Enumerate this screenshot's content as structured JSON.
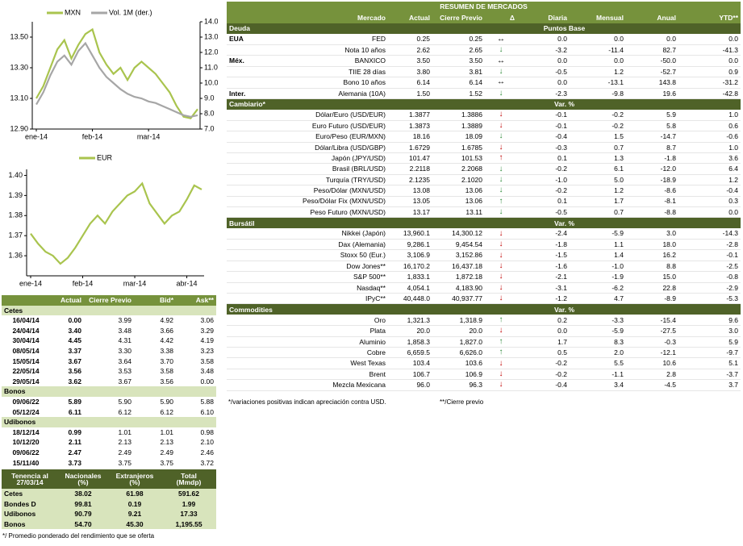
{
  "chart_data": [
    {
      "type": "line",
      "categories": [
        "ene-14",
        null,
        null,
        null,
        null,
        null,
        null,
        null,
        "feb-14",
        null,
        null,
        null,
        null,
        null,
        null,
        null,
        "mar-14",
        null,
        null,
        null,
        null,
        null,
        null,
        null
      ],
      "series": [
        {
          "name": "MXN",
          "color": "#a9c44e",
          "values": [
            13.1,
            13.18,
            13.3,
            13.42,
            13.48,
            13.36,
            13.45,
            13.52,
            13.55,
            13.4,
            13.32,
            13.26,
            13.3,
            13.22,
            13.3,
            13.34,
            13.3,
            13.26,
            13.2,
            13.14,
            13.05,
            12.98,
            12.97,
            13.03
          ]
        },
        {
          "name": "Vol. 1M (der.)",
          "color": "#a6a6a6",
          "axis": "y2",
          "values": [
            8.6,
            9.4,
            10.5,
            11.4,
            11.8,
            11.2,
            12.1,
            12.6,
            11.8,
            11.0,
            10.4,
            10.0,
            9.6,
            9.3,
            9.1,
            9.0,
            8.8,
            8.7,
            8.5,
            8.3,
            8.1,
            7.9,
            7.8,
            7.9
          ]
        }
      ],
      "ylim": [
        12.9,
        13.6
      ],
      "yticks": [
        {
          "value": 12.9,
          "label": "12.90"
        },
        {
          "value": 13.1,
          "label": "13.10"
        },
        {
          "value": 13.3,
          "label": "13.30"
        },
        {
          "value": 13.5,
          "label": "13.50"
        }
      ],
      "y2lim": [
        7,
        14
      ],
      "y2ticks": [
        {
          "value": 7,
          "label": "7.0"
        },
        {
          "value": 8,
          "label": "8.0"
        },
        {
          "value": 9,
          "label": "9.0"
        },
        {
          "value": 10,
          "label": "10.0"
        },
        {
          "value": 11,
          "label": "11.0"
        },
        {
          "value": 12,
          "label": "12.0"
        },
        {
          "value": 13,
          "label": "13.0"
        },
        {
          "value": 14,
          "label": "14.0"
        }
      ]
    },
    {
      "type": "line",
      "categories": [
        "ene-14",
        null,
        null,
        null,
        null,
        null,
        null,
        "feb-14",
        null,
        null,
        null,
        null,
        null,
        null,
        "mar-14",
        null,
        null,
        null,
        null,
        null,
        null,
        "abr-14",
        null,
        null
      ],
      "series": [
        {
          "name": "EUR",
          "color": "#a9c44e",
          "values": [
            1.371,
            1.366,
            1.362,
            1.36,
            1.356,
            1.359,
            1.364,
            1.37,
            1.376,
            1.38,
            1.376,
            1.382,
            1.386,
            1.39,
            1.392,
            1.396,
            1.386,
            1.381,
            1.376,
            1.38,
            1.382,
            1.388,
            1.395,
            1.393
          ]
        }
      ],
      "ylim": [
        1.35,
        1.403
      ],
      "yticks": [
        1.36,
        1.37,
        1.38,
        1.39,
        {
          "value": 1.4,
          "label": "1.40"
        }
      ]
    }
  ],
  "bond_table": {
    "header": [
      "Actual",
      "Cierre Previo",
      "Bid*",
      "Ask**"
    ],
    "sections": [
      {
        "title": "Cetes",
        "rows": [
          [
            "16/04/14",
            "0.00",
            "3.99",
            "4.92",
            "3.06"
          ],
          [
            "24/04/14",
            "3.40",
            "3.48",
            "3.66",
            "3.29"
          ],
          [
            "30/04/14",
            "4.45",
            "4.31",
            "4.42",
            "4.19"
          ],
          [
            "08/05/14",
            "3.37",
            "3.30",
            "3.38",
            "3.23"
          ],
          [
            "15/05/14",
            "3.67",
            "3.64",
            "3.70",
            "3.58"
          ],
          [
            "22/05/14",
            "3.56",
            "3.53",
            "3.58",
            "3.48"
          ],
          [
            "29/05/14",
            "3.62",
            "3.67",
            "3.56",
            "0.00"
          ]
        ]
      },
      {
        "title": "Bonos",
        "rows": [
          [
            "09/06/22",
            "5.89",
            "5.90",
            "5.90",
            "5.88"
          ],
          [
            "05/12/24",
            "6.11",
            "6.12",
            "6.12",
            "6.10"
          ]
        ]
      },
      {
        "title": "Udibonos",
        "rows": [
          [
            "18/12/14",
            "0.99",
            "1.01",
            "1.01",
            "0.98"
          ],
          [
            "10/12/20",
            "2.11",
            "2.13",
            "2.13",
            "2.10"
          ],
          [
            "09/06/22",
            "2.47",
            "2.49",
            "2.49",
            "2.46"
          ],
          [
            "15/11/40",
            "3.73",
            "3.75",
            "3.75",
            "3.72"
          ]
        ]
      }
    ]
  },
  "holdings": {
    "header": [
      [
        "Tenencia al",
        "27/03/14"
      ],
      [
        "Nacionales",
        "(%)"
      ],
      [
        "Extranjeros",
        "(%)"
      ],
      [
        "Total",
        "(Mmdp)"
      ]
    ],
    "rows": [
      [
        "Cetes",
        "38.02",
        "61.98",
        "591.62"
      ],
      [
        "Bondes D",
        "99.81",
        "0.19",
        "1.99"
      ],
      [
        "Udibonos",
        "90.79",
        "9.21",
        "17.33"
      ],
      [
        "Bonos",
        "54.70",
        "45.30",
        "1,195.55"
      ]
    ],
    "footnote": "*/ Promedio ponderado del rendimiento que se oferta"
  },
  "market_summary": {
    "title": "RESUMEN DE MERCADOS",
    "header": [
      "Mercado",
      "Actual",
      "Cierre Previo",
      "Δ",
      "Diaria",
      "Mensual",
      "Anual",
      "YTD**"
    ],
    "sections": [
      {
        "title": "Deuda",
        "unit": "Puntos Base",
        "rows": [
          {
            "group": "EUA",
            "cells": [
              "FED",
              "0.25",
              "0.25",
              "↔",
              "0.0",
              "0.0",
              "0.0",
              "0.0"
            ],
            "arrow_color": "#000000"
          },
          {
            "cells": [
              "Nota 10 años",
              "2.62",
              "2.65",
              "↓",
              "-3.2",
              "-11.4",
              "82.7",
              "-41.3"
            ],
            "arrow_color": "#2e8b3a"
          },
          {
            "group": "Méx.",
            "cells": [
              "BANXICO",
              "3.50",
              "3.50",
              "↔",
              "0.0",
              "0.0",
              "-50.0",
              "0.0"
            ],
            "arrow_color": "#000000"
          },
          {
            "cells": [
              "TIIE 28 días",
              "3.80",
              "3.81",
              "↓",
              "-0.5",
              "1.2",
              "-52.7",
              "0.9"
            ],
            "arrow_color": "#2e8b3a"
          },
          {
            "cells": [
              "Bono 10 años",
              "6.14",
              "6.14",
              "↔",
              "0.0",
              "-13.1",
              "143.8",
              "-31.2"
            ],
            "arrow_color": "#000000"
          },
          {
            "group": "Inter.",
            "cells": [
              "Alemania (10A)",
              "1.50",
              "1.52",
              "↓",
              "-2.3",
              "-9.8",
              "19.6",
              "-42.8"
            ],
            "arrow_color": "#2e8b3a"
          }
        ]
      },
      {
        "title": "Cambiario*",
        "unit": "Var. %",
        "rows": [
          {
            "cells": [
              "Dólar/Euro (USD/EUR)",
              "1.3877",
              "1.3886",
              "↓",
              "-0.1",
              "-0.2",
              "5.9",
              "1.0"
            ],
            "arrow_color": "#c00000"
          },
          {
            "cells": [
              "Euro Futuro (USD/EUR)",
              "1.3873",
              "1.3889",
              "↓",
              "-0.1",
              "-0.2",
              "5.8",
              "0.6"
            ],
            "arrow_color": "#c00000"
          },
          {
            "cells": [
              "Euro/Peso (EUR/MXN)",
              "18.16",
              "18.09",
              "↓",
              "-0.4",
              "1.5",
              "-14.7",
              "-0.6"
            ],
            "arrow_color": "#2e8b3a"
          },
          {
            "cells": [
              "Dólar/Libra (USD/GBP)",
              "1.6729",
              "1.6785",
              "↓",
              "-0.3",
              "0.7",
              "8.7",
              "1.0"
            ],
            "arrow_color": "#c00000"
          },
          {
            "cells": [
              "Japón (JPY/USD)",
              "101.47",
              "101.53",
              "↑",
              "0.1",
              "1.3",
              "-1.8",
              "3.6"
            ],
            "arrow_color": "#c00000"
          },
          {
            "cells": [
              "Brasil (BRL/USD)",
              "2.2118",
              "2.2068",
              "↓",
              "-0.2",
              "6.1",
              "-12.0",
              "6.4"
            ],
            "arrow_color": "#2e8b3a"
          },
          {
            "cells": [
              "Turquía (TRY/USD)",
              "2.1235",
              "2.1020",
              "↓",
              "-1.0",
              "5.0",
              "-18.9",
              "1.2"
            ],
            "arrow_color": "#2e8b3a"
          },
          {
            "cells": [
              "Peso/Dólar (MXN/USD)",
              "13.08",
              "13.06",
              "↓",
              "-0.2",
              "1.2",
              "-8.6",
              "-0.4"
            ],
            "arrow_color": "#2e8b3a"
          },
          {
            "cells": [
              "Peso/Dólar Fix (MXN/USD)",
              "13.05",
              "13.06",
              "↑",
              "0.1",
              "1.7",
              "-8.1",
              "0.3"
            ],
            "arrow_color": "#2e8b3a"
          },
          {
            "cells": [
              "Peso Futuro (MXN/USD)",
              "13.17",
              "13.11",
              "↓",
              "-0.5",
              "0.7",
              "-8.8",
              "0.0"
            ],
            "arrow_color": "#2e8b3a"
          }
        ]
      },
      {
        "title": "Bursátil",
        "unit": "Var. %",
        "rows": [
          {
            "cells": [
              "Nikkei (Japón)",
              "13,960.1",
              "14,300.12",
              "↓",
              "-2.4",
              "-5.9",
              "3.0",
              "-14.3"
            ],
            "arrow_color": "#c00000"
          },
          {
            "cells": [
              "Dax (Alemania)",
              "9,286.1",
              "9,454.54",
              "↓",
              "-1.8",
              "1.1",
              "18.0",
              "-2.8"
            ],
            "arrow_color": "#c00000"
          },
          {
            "cells": [
              "Stoxx 50 (Eur.)",
              "3,106.9",
              "3,152.86",
              "↓",
              "-1.5",
              "1.4",
              "16.2",
              "-0.1"
            ],
            "arrow_color": "#c00000"
          },
          {
            "cells": [
              "Dow Jones**",
              "16,170.2",
              "16,437.18",
              "↓",
              "-1.6",
              "-1.0",
              "8.8",
              "-2.5"
            ],
            "arrow_color": "#c00000"
          },
          {
            "cells": [
              "S&P 500**",
              "1,833.1",
              "1,872.18",
              "↓",
              "-2.1",
              "-1.9",
              "15.0",
              "-0.8"
            ],
            "arrow_color": "#c00000"
          },
          {
            "cells": [
              "Nasdaq**",
              "4,054.1",
              "4,183.90",
              "↓",
              "-3.1",
              "-6.2",
              "22.8",
              "-2.9"
            ],
            "arrow_color": "#c00000"
          },
          {
            "cells": [
              "IPyC**",
              "40,448.0",
              "40,937.77",
              "↓",
              "-1.2",
              "4.7",
              "-8.9",
              "-5.3"
            ],
            "arrow_color": "#c00000"
          }
        ]
      },
      {
        "title": "Commodities",
        "unit": "Var. %",
        "rows": [
          {
            "cells": [
              "Oro",
              "1,321.3",
              "1,318.9",
              "↑",
              "0.2",
              "-3.3",
              "-15.4",
              "9.6"
            ],
            "arrow_color": "#2e8b3a"
          },
          {
            "cells": [
              "Plata",
              "20.0",
              "20.0",
              "↓",
              "0.0",
              "-5.9",
              "-27.5",
              "3.0"
            ],
            "arrow_color": "#c00000"
          },
          {
            "cells": [
              "Aluminio",
              "1,858.3",
              "1,827.0",
              "↑",
              "1.7",
              "8.3",
              "-0.3",
              "5.9"
            ],
            "arrow_color": "#2e8b3a"
          },
          {
            "cells": [
              "Cobre",
              "6,659.5",
              "6,626.0",
              "↑",
              "0.5",
              "2.0",
              "-12.1",
              "-9.7"
            ],
            "arrow_color": "#2e8b3a"
          },
          {
            "cells": [
              "West Texas",
              "103.4",
              "103.6",
              "↓",
              "-0.2",
              "5.5",
              "10.6",
              "5.1"
            ],
            "arrow_color": "#c00000"
          },
          {
            "cells": [
              "Brent",
              "106.7",
              "106.9",
              "↓",
              "-0.2",
              "-1.1",
              "2.8",
              "-3.7"
            ],
            "arrow_color": "#c00000"
          },
          {
            "cells": [
              "Mezcla Mexicana",
              "96.0",
              "96.3",
              "↓",
              "-0.4",
              "3.4",
              "-4.5",
              "3.7"
            ],
            "arrow_color": "#c00000"
          }
        ]
      }
    ],
    "footnotes": [
      "*/variaciones positivas indican apreciación contra USD.",
      "**/Cierre previo"
    ]
  }
}
